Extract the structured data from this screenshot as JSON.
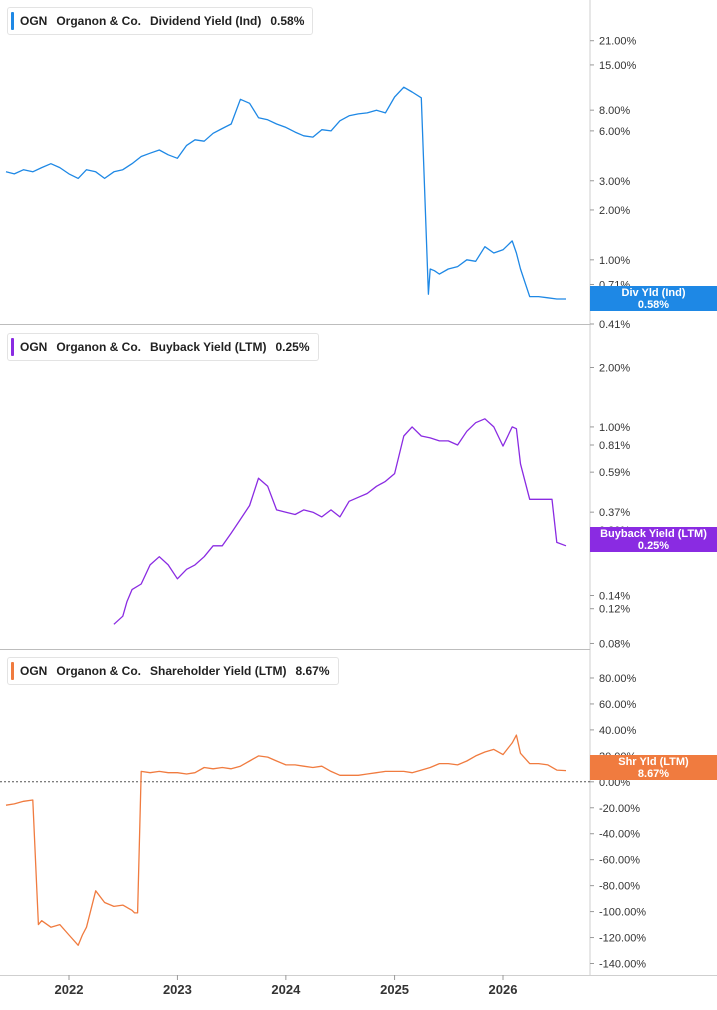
{
  "chart_data": [
    {
      "type": "line",
      "ticker": "OGN",
      "company": "Organon & Co.",
      "metric": "Dividend Yield (Ind)",
      "current_value": "0.58%",
      "tag_label": "Div Yld (Ind)",
      "color": "#1e88e5",
      "scale": "log",
      "ylim": [
        0.41,
        28
      ],
      "yticks": [
        0.41,
        0.71,
        1.0,
        2.0,
        3.0,
        6.0,
        8.0,
        15.0,
        21.0
      ],
      "ytick_labels": [
        "0.41%",
        "0.71%",
        "1.00%",
        "2.00%",
        "3.00%",
        "6.00%",
        "8.00%",
        "15.00%",
        "21.00%"
      ],
      "series": [
        {
          "x": [
            "2021-06-03",
            "2021-07-01",
            "2021-08-01",
            "2021-09-01",
            "2021-10-01",
            "2021-11-01",
            "2021-12-01",
            "2022-01-01",
            "2022-02-01",
            "2022-03-01",
            "2022-04-01",
            "2022-05-01",
            "2022-06-01",
            "2022-07-01",
            "2022-08-01",
            "2022-09-01",
            "2022-10-01",
            "2022-11-01",
            "2022-12-01",
            "2023-01-01",
            "2023-02-01",
            "2023-03-01",
            "2023-04-01",
            "2023-05-01",
            "2023-06-01",
            "2023-07-01",
            "2023-08-01",
            "2023-09-01",
            "2023-10-01",
            "2023-11-01",
            "2023-12-01",
            "2024-01-01",
            "2024-02-01",
            "2024-03-01",
            "2024-04-01",
            "2024-05-01",
            "2024-06-01",
            "2024-07-01",
            "2024-08-01",
            "2024-09-01",
            "2024-10-01",
            "2024-11-01",
            "2024-12-01",
            "2025-01-01",
            "2025-02-01",
            "2025-03-01",
            "2025-04-01",
            "2025-04-25",
            "2025-05-01",
            "2025-05-15",
            "2025-06-01",
            "2025-07-01",
            "2025-08-01",
            "2025-09-01",
            "2025-10-01",
            "2025-11-01",
            "2025-12-01",
            "2026-01-01",
            "2026-02-01",
            "2026-02-15",
            "2026-03-01",
            "2026-04-01",
            "2026-05-01",
            "2026-06-01",
            "2026-07-01",
            "2026-08-01"
          ],
          "values": [
            3.4,
            3.3,
            3.5,
            3.4,
            3.6,
            3.8,
            3.6,
            3.3,
            3.1,
            3.5,
            3.4,
            3.1,
            3.4,
            3.5,
            3.8,
            4.2,
            4.4,
            4.6,
            4.3,
            4.1,
            4.9,
            5.3,
            5.2,
            5.8,
            6.2,
            6.6,
            9.3,
            8.8,
            7.2,
            7.0,
            6.6,
            6.3,
            5.9,
            5.6,
            5.5,
            6.1,
            6.0,
            6.9,
            7.4,
            7.6,
            7.7,
            8.0,
            7.7,
            9.6,
            11.0,
            10.3,
            9.5,
            0.62,
            0.88,
            0.86,
            0.82,
            0.88,
            0.91,
            1.0,
            0.98,
            1.2,
            1.1,
            1.15,
            1.3,
            1.1,
            0.88,
            0.6,
            0.6,
            0.59,
            0.58,
            0.58
          ]
        }
      ]
    },
    {
      "type": "line",
      "ticker": "OGN",
      "company": "Organon & Co.",
      "metric": "Buyback Yield (LTM)",
      "current_value": "0.25%",
      "tag_label": "Buyback Yield (LTM)",
      "color": "#8a2be2",
      "scale": "log",
      "ylim": [
        0.075,
        2.6
      ],
      "yticks": [
        0.08,
        0.12,
        0.14,
        0.3,
        0.37,
        0.59,
        0.81,
        1.0,
        2.0
      ],
      "ytick_labels": [
        "0.08%",
        "0.12%",
        "0.14%",
        "0.30%",
        "0.37%",
        "0.59%",
        "0.81%",
        "1.00%",
        "2.00%"
      ],
      "series": [
        {
          "x": [
            "2022-06-01",
            "2022-07-01",
            "2022-07-15",
            "2022-08-01",
            "2022-09-01",
            "2022-10-01",
            "2022-11-01",
            "2022-12-01",
            "2023-01-01",
            "2023-02-01",
            "2023-03-01",
            "2023-04-01",
            "2023-05-01",
            "2023-06-01",
            "2023-07-01",
            "2023-08-01",
            "2023-09-01",
            "2023-10-01",
            "2023-11-01",
            "2023-12-01",
            "2024-01-01",
            "2024-02-01",
            "2024-03-01",
            "2024-04-01",
            "2024-05-01",
            "2024-06-01",
            "2024-07-01",
            "2024-08-01",
            "2024-09-01",
            "2024-10-01",
            "2024-11-01",
            "2024-12-01",
            "2025-01-01",
            "2025-02-01",
            "2025-03-01",
            "2025-04-01",
            "2025-05-01",
            "2025-06-01",
            "2025-07-01",
            "2025-08-01",
            "2025-09-01",
            "2025-10-01",
            "2025-11-01",
            "2025-12-01",
            "2026-01-01",
            "2026-02-01",
            "2026-02-15",
            "2026-03-01",
            "2026-04-01",
            "2026-05-01",
            "2026-06-01",
            "2026-06-15",
            "2026-07-01",
            "2026-08-01"
          ],
          "values": [
            0.1,
            0.11,
            0.13,
            0.15,
            0.16,
            0.2,
            0.22,
            0.2,
            0.17,
            0.19,
            0.2,
            0.22,
            0.25,
            0.25,
            0.29,
            0.34,
            0.4,
            0.55,
            0.5,
            0.38,
            0.37,
            0.36,
            0.38,
            0.37,
            0.35,
            0.38,
            0.35,
            0.42,
            0.44,
            0.46,
            0.5,
            0.53,
            0.58,
            0.9,
            1.0,
            0.9,
            0.88,
            0.85,
            0.85,
            0.81,
            0.95,
            1.05,
            1.1,
            1.0,
            0.8,
            1.0,
            0.98,
            0.65,
            0.43,
            0.43,
            0.43,
            0.43,
            0.26,
            0.25
          ]
        }
      ]
    },
    {
      "type": "line",
      "ticker": "OGN",
      "company": "Organon & Co.",
      "metric": "Shareholder Yield (LTM)",
      "current_value": "8.67%",
      "tag_label": "Shr Yld (LTM)",
      "color": "#f07b3f",
      "scale": "linear",
      "ylim": [
        -145,
        90
      ],
      "yticks": [
        80,
        60,
        40,
        20,
        0,
        -20,
        -40,
        -60,
        -80,
        -100,
        -120,
        -140
      ],
      "ytick_labels": [
        "80.00%",
        "60.00%",
        "40.00%",
        "20.00%",
        "0.00%",
        "-20.00%",
        "-40.00%",
        "-60.00%",
        "-80.00%",
        "-100.00%",
        "-120.00%",
        "-140.00%"
      ],
      "zero_line": true,
      "series": [
        {
          "x": [
            "2021-06-03",
            "2021-07-01",
            "2021-08-01",
            "2021-09-01",
            "2021-09-20",
            "2021-10-01",
            "2021-11-01",
            "2021-12-01",
            "2022-01-01",
            "2022-02-01",
            "2022-02-15",
            "2022-03-01",
            "2022-04-01",
            "2022-05-01",
            "2022-06-01",
            "2022-07-01",
            "2022-08-01",
            "2022-08-10",
            "2022-08-20",
            "2022-09-01",
            "2022-10-01",
            "2022-11-01",
            "2022-12-01",
            "2023-01-01",
            "2023-02-01",
            "2023-03-01",
            "2023-04-01",
            "2023-05-01",
            "2023-06-01",
            "2023-07-01",
            "2023-08-01",
            "2023-09-01",
            "2023-10-01",
            "2023-11-01",
            "2023-12-01",
            "2024-01-01",
            "2024-02-01",
            "2024-03-01",
            "2024-04-01",
            "2024-05-01",
            "2024-06-01",
            "2024-07-01",
            "2024-08-01",
            "2024-09-01",
            "2024-10-01",
            "2024-11-01",
            "2024-12-01",
            "2025-01-01",
            "2025-02-01",
            "2025-03-01",
            "2025-04-01",
            "2025-05-01",
            "2025-06-01",
            "2025-07-01",
            "2025-08-01",
            "2025-09-01",
            "2025-10-01",
            "2025-11-01",
            "2025-12-01",
            "2026-01-01",
            "2026-02-01",
            "2026-02-15",
            "2026-03-01",
            "2026-04-01",
            "2026-05-01",
            "2026-06-01",
            "2026-07-01",
            "2026-08-01"
          ],
          "values": [
            -18,
            -17,
            -15,
            -14,
            -110,
            -107,
            -112,
            -110,
            -118,
            -126,
            -118,
            -112,
            -84,
            -93,
            -96,
            -95,
            -99,
            -101,
            -101,
            8,
            7,
            8,
            7,
            7,
            6,
            7,
            11,
            10,
            11,
            10,
            12,
            16,
            20,
            19,
            16,
            13,
            13,
            12,
            11,
            12,
            8,
            5,
            5,
            5,
            6,
            7,
            8,
            8,
            8,
            7,
            9,
            11,
            14,
            14,
            13,
            16,
            20,
            23,
            25,
            21,
            30,
            36,
            22,
            14,
            14,
            13,
            9,
            8.67
          ]
        }
      ]
    }
  ],
  "x_axis": {
    "ticks": [
      "2022-01-01",
      "2023-01-01",
      "2024-01-01",
      "2025-01-01",
      "2026-01-01"
    ],
    "tick_labels": [
      "2022",
      "2023",
      "2024",
      "2025",
      "2026"
    ]
  }
}
